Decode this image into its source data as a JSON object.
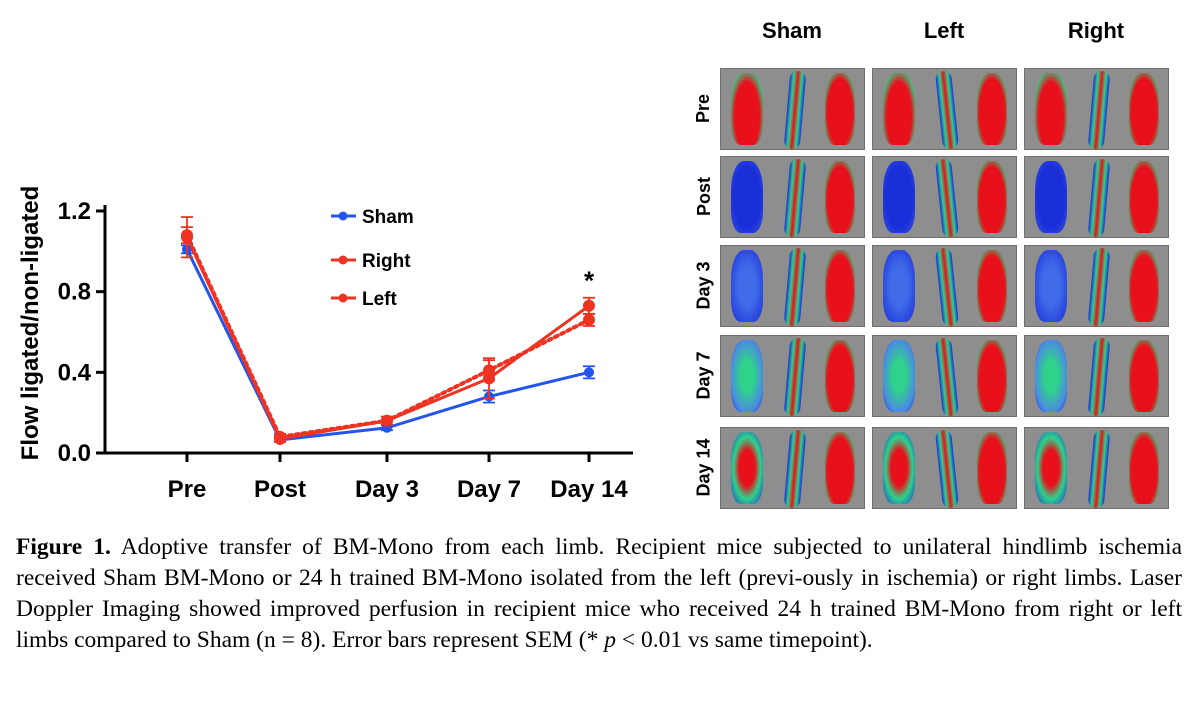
{
  "chart_data": {
    "type": "line",
    "title": "",
    "xlabel": "",
    "ylabel": "Flow ligated/non-ligated",
    "categories": [
      "Pre",
      "Post",
      "Day 3",
      "Day 7",
      "Day 14"
    ],
    "ylim": [
      0.0,
      1.25
    ],
    "yticks": [
      0.0,
      0.4,
      0.8,
      1.2
    ],
    "ytick_labels": [
      "0.0",
      "0.4",
      "0.8",
      "1.2"
    ],
    "series": [
      {
        "name": "Sham",
        "color": "#2255ee",
        "style": "solid",
        "values": [
          1.01,
          0.065,
          0.125,
          0.28,
          0.4
        ],
        "errors": [
          0.02,
          0.01,
          0.012,
          0.03,
          0.03
        ]
      },
      {
        "name": "Right",
        "color": "#ee3322",
        "style": "solid",
        "values": [
          1.07,
          0.07,
          0.16,
          0.37,
          0.73
        ],
        "errors": [
          0.1,
          0.015,
          0.02,
          0.1,
          0.04
        ]
      },
      {
        "name": "Left",
        "color": "#ee3322",
        "style": "dotted",
        "values": [
          1.08,
          0.08,
          0.16,
          0.41,
          0.66
        ],
        "errors": [
          0.04,
          0.015,
          0.02,
          0.05,
          0.03
        ]
      }
    ],
    "legend_position": "top-center",
    "annotations": [
      {
        "text": "*",
        "category": "Day 14",
        "value": 0.88
      }
    ]
  },
  "ldi_panel": {
    "column_labels": [
      "Sham",
      "Left",
      "Right"
    ],
    "row_labels": [
      "Pre",
      "Post",
      "Day 3",
      "Day 7",
      "Day 14"
    ],
    "colors": {
      "background": "#8e8e8e",
      "high": "#e8101a",
      "mid": "#2fd28a",
      "low": "#1a2fd8",
      "border": "#6f6f6f"
    }
  },
  "caption": {
    "label": "Figure 1.",
    "text_before_italic": " Adoptive transfer of BM-Mono from each limb. Recipient mice subjected to unilateral hindlimb ischemia received Sham BM-Mono or 24 h trained BM-Mono isolated from the left (previ-ously in ischemia) or right limbs. Laser Doppler Imaging showed improved perfusion in recipient mice who received 24 h trained BM-Mono from right or left limbs compared to Sham (n = 8). Error bars represent SEM (* ",
    "italic": "p",
    "text_after_italic": " < 0.01 vs same timepoint)."
  }
}
